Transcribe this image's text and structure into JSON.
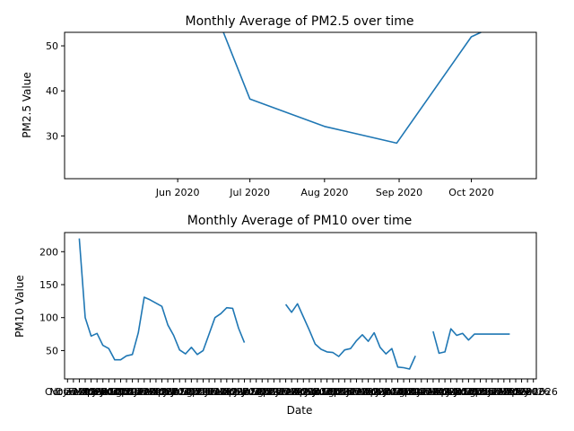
{
  "chart_data": [
    {
      "type": "line",
      "title": "Monthly Average of PM2.5 over time",
      "xlabel": "",
      "ylabel": "PM2.5 Value",
      "x_tick_labels": [
        "Jun 2020",
        "Jul 2020",
        "Aug 2020",
        "Sep 2020",
        "Oct 2020"
      ],
      "y_ticks": [
        30,
        40,
        50
      ],
      "xlim": [
        "2020-04-15",
        "2020-10-28"
      ],
      "ylim": [
        20.5,
        53
      ],
      "grid": false,
      "color": "#1f77b4",
      "series": [
        {
          "x": [
            "2020-06-20",
            "2020-07-01",
            "2020-08-01",
            "2020-08-31",
            "2020-10-01",
            "2020-10-05"
          ],
          "y": [
            53,
            38.2,
            32.1,
            28.4,
            52,
            53
          ]
        }
      ]
    },
    {
      "type": "line",
      "title": "Monthly Average of PM10 over time",
      "xlabel": "Date",
      "ylabel": "PM10 Value",
      "x_tick_labels": [
        "Oct 2019",
        "Nov 2019",
        "Dec 2019",
        "Jan 2020",
        "Feb 2020",
        "Mar 2020",
        "Apr 2020",
        "May 2020",
        "Jun 2020",
        "Jul 2020",
        "Aug 2020",
        "Sep 2020",
        "Oct 2020",
        "Nov 2020",
        "Dec 2020",
        "Jan 2021",
        "Feb 2021",
        "Mar 2021",
        "Apr 2021",
        "May 2021",
        "Jun 2021",
        "Jul 2021",
        "Aug 2021",
        "Sep 2021",
        "Oct 2021",
        "Nov 2021",
        "Dec 2021",
        "Jan 2022",
        "Feb 2022",
        "Mar 2022",
        "Apr 2022",
        "May 2022",
        "Jun 2022",
        "Jul 2022",
        "Aug 2022",
        "Sep 2022",
        "Oct 2022",
        "Nov 2022",
        "Dec 2022",
        "Jan 2023",
        "Feb 2023",
        "Mar 2023",
        "Apr 2023",
        "May 2023",
        "Jun 2023",
        "Jul 2023",
        "Aug 2023",
        "Sep 2023",
        "Oct 2023",
        "Nov 2023",
        "Dec 2023",
        "Jan 2024",
        "Feb 2024",
        "Mar 2024",
        "Apr 2024",
        "May 2024",
        "Jun 2024",
        "Jul 2024",
        "Aug 2024",
        "Sep 2024",
        "Oct 2024",
        "Nov 2024",
        "Dec 2024",
        "Jan 2025",
        "Feb 2025",
        "Mar 2025",
        "Apr 2025",
        "May 2025",
        "Jun 2025",
        "Jul 2025",
        "Aug 2025",
        "Sep 2025",
        "Oct 2025",
        "Nov 2025",
        "Dec 2025",
        "Jan 2026",
        "Feb 2026",
        "Mar 2026",
        "Apr 2026",
        "May 2026"
      ],
      "y_ticks": [
        50,
        100,
        150,
        200
      ],
      "ylim": [
        7,
        229
      ],
      "grid": false,
      "color": "#1f77b4",
      "series": [
        {
          "segments": [
            [
              220,
              100,
              72,
              76,
              58,
              53,
              36,
              36,
              42,
              44,
              77,
              131,
              127,
              122,
              117,
              89,
              73,
              51,
              45,
              55,
              44,
              50,
              75,
              100,
              106,
              115,
              114,
              84,
              62
            ],
            [
              120,
              108,
              121,
              101,
              81,
              60,
              52,
              48,
              47,
              41,
              51,
              53,
              65,
              74,
              64,
              77,
              55,
              45,
              53,
              25,
              24,
              22,
              42
            ],
            [
              79,
              46,
              48,
              83,
              73,
              76,
              66,
              75,
              75,
              75,
              75,
              75,
              75,
              75
            ]
          ],
          "segment_start_index": [
            2,
            37,
            62
          ]
        }
      ]
    }
  ]
}
